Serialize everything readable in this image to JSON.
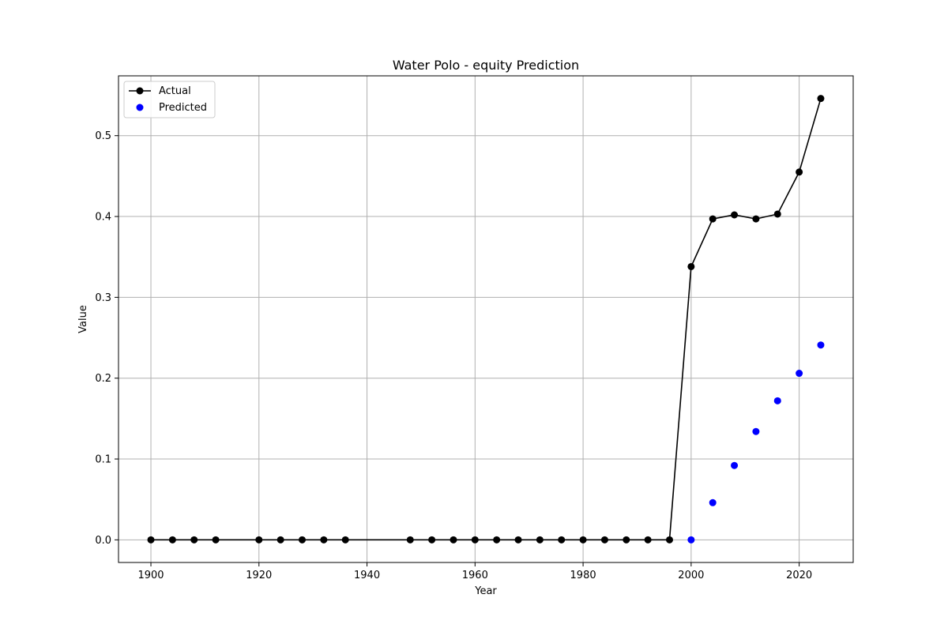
{
  "chart_data": {
    "type": "line",
    "title": "Water Polo - equity Prediction",
    "xlabel": "Year",
    "ylabel": "Value",
    "xlim": [
      1894,
      2030
    ],
    "ylim": [
      -0.028,
      0.574
    ],
    "xticks": [
      1900,
      1920,
      1940,
      1960,
      1980,
      2000,
      2020
    ],
    "yticks": [
      0.0,
      0.1,
      0.2,
      0.3,
      0.4,
      0.5
    ],
    "grid": true,
    "legend_position": "top-left",
    "series": [
      {
        "name": "Actual",
        "kind": "line-marker",
        "color": "#000000",
        "x": [
          1900,
          1904,
          1908,
          1912,
          1920,
          1924,
          1928,
          1932,
          1936,
          1948,
          1952,
          1956,
          1960,
          1964,
          1968,
          1972,
          1976,
          1980,
          1984,
          1988,
          1992,
          1996,
          2000,
          2004,
          2008,
          2012,
          2016,
          2020,
          2024
        ],
        "y": [
          0,
          0,
          0,
          0,
          0,
          0,
          0,
          0,
          0,
          0,
          0,
          0,
          0,
          0,
          0,
          0,
          0,
          0,
          0,
          0,
          0,
          0,
          0.338,
          0.397,
          0.402,
          0.397,
          0.403,
          0.455,
          0.546
        ]
      },
      {
        "name": "Predicted",
        "kind": "scatter",
        "color": "#0000ff",
        "x": [
          2000,
          2004,
          2008,
          2012,
          2016,
          2020,
          2024
        ],
        "y": [
          0.0,
          0.046,
          0.092,
          0.134,
          0.172,
          0.206,
          0.241
        ]
      }
    ]
  }
}
